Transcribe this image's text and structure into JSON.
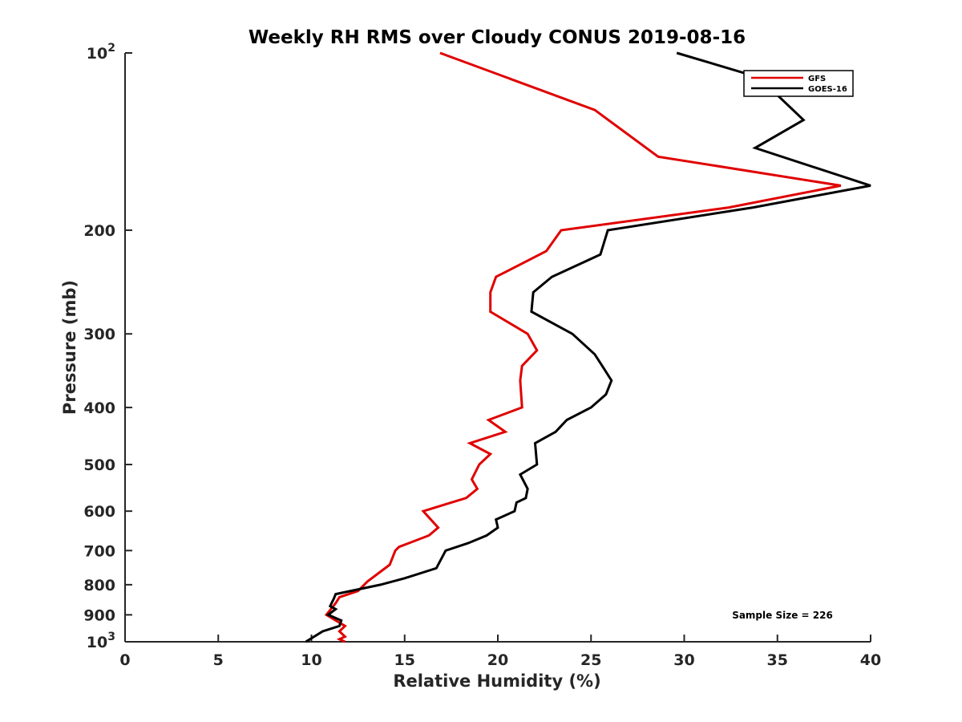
{
  "chart_data": {
    "type": "line",
    "title": "Weekly RH RMS over Cloudy CONUS 2019-08-16",
    "xlabel": "Relative Humidity (%)",
    "ylabel": "Pressure (mb)",
    "xlim": [
      0,
      40
    ],
    "ylim": [
      100,
      1000
    ],
    "y_scale": "log",
    "y_reversed": true,
    "x_ticks": [
      "0",
      "5",
      "10",
      "15",
      "20",
      "25",
      "30",
      "35",
      "40"
    ],
    "y_ticks": [
      {
        "value": 100,
        "base": "10",
        "exp": "2"
      },
      {
        "value": 200,
        "label": "200"
      },
      {
        "value": 300,
        "label": "300"
      },
      {
        "value": 400,
        "label": "400"
      },
      {
        "value": 500,
        "label": "500"
      },
      {
        "value": 600,
        "label": "600"
      },
      {
        "value": 700,
        "label": "700"
      },
      {
        "value": 800,
        "label": "800"
      },
      {
        "value": 900,
        "label": "900"
      },
      {
        "value": 1000,
        "base": "10",
        "exp": "3"
      }
    ],
    "grid": false,
    "legend_position": "top-right",
    "series": [
      {
        "name": "GFS",
        "color": "#e00000",
        "points": [
          [
            16.9,
            100
          ],
          [
            25.2,
            125
          ],
          [
            28.6,
            150
          ],
          [
            38.4,
            168
          ],
          [
            32.4,
            183
          ],
          [
            23.4,
            200
          ],
          [
            22.6,
            217
          ],
          [
            19.9,
            240
          ],
          [
            19.6,
            255
          ],
          [
            19.6,
            275
          ],
          [
            21.6,
            300
          ],
          [
            22.1,
            320
          ],
          [
            21.3,
            340
          ],
          [
            21.2,
            360
          ],
          [
            21.3,
            400
          ],
          [
            19.5,
            420
          ],
          [
            20.4,
            440
          ],
          [
            18.5,
            460
          ],
          [
            19.6,
            480
          ],
          [
            19.0,
            500
          ],
          [
            18.6,
            530
          ],
          [
            18.9,
            550
          ],
          [
            18.3,
            570
          ],
          [
            17.5,
            580
          ],
          [
            16.0,
            600
          ],
          [
            16.8,
            640
          ],
          [
            16.3,
            660
          ],
          [
            14.7,
            690
          ],
          [
            14.5,
            700
          ],
          [
            14.2,
            740
          ],
          [
            13.0,
            790
          ],
          [
            12.5,
            820
          ],
          [
            11.5,
            840
          ],
          [
            11.3,
            860
          ],
          [
            10.8,
            900
          ],
          [
            11.3,
            920
          ],
          [
            11.8,
            940
          ],
          [
            11.5,
            960
          ],
          [
            11.8,
            980
          ],
          [
            11.5,
            990
          ],
          [
            11.8,
            1000
          ]
        ]
      },
      {
        "name": "GOES-16",
        "color": "#000000",
        "points": [
          [
            29.6,
            100
          ],
          [
            34.0,
            110
          ],
          [
            36.4,
            130
          ],
          [
            33.8,
            145
          ],
          [
            40.0,
            168
          ],
          [
            33.7,
            183
          ],
          [
            25.9,
            200
          ],
          [
            25.5,
            220
          ],
          [
            22.9,
            240
          ],
          [
            21.9,
            255
          ],
          [
            21.8,
            275
          ],
          [
            24.0,
            300
          ],
          [
            25.2,
            325
          ],
          [
            25.6,
            340
          ],
          [
            26.1,
            360
          ],
          [
            25.8,
            380
          ],
          [
            25.0,
            400
          ],
          [
            23.7,
            420
          ],
          [
            23.1,
            440
          ],
          [
            22.0,
            460
          ],
          [
            22.1,
            500
          ],
          [
            21.2,
            520
          ],
          [
            21.6,
            550
          ],
          [
            21.5,
            570
          ],
          [
            21.0,
            580
          ],
          [
            20.9,
            600
          ],
          [
            19.9,
            620
          ],
          [
            20.0,
            640
          ],
          [
            19.4,
            660
          ],
          [
            18.4,
            680
          ],
          [
            17.2,
            700
          ],
          [
            16.7,
            750
          ],
          [
            15.0,
            780
          ],
          [
            13.7,
            800
          ],
          [
            11.3,
            830
          ],
          [
            11.2,
            845
          ],
          [
            11.0,
            870
          ],
          [
            11.3,
            880
          ],
          [
            10.9,
            900
          ],
          [
            11.6,
            920
          ],
          [
            11.5,
            940
          ],
          [
            10.6,
            960
          ],
          [
            9.7,
            1000
          ]
        ]
      }
    ],
    "annotation": "Sample Size = 226"
  }
}
